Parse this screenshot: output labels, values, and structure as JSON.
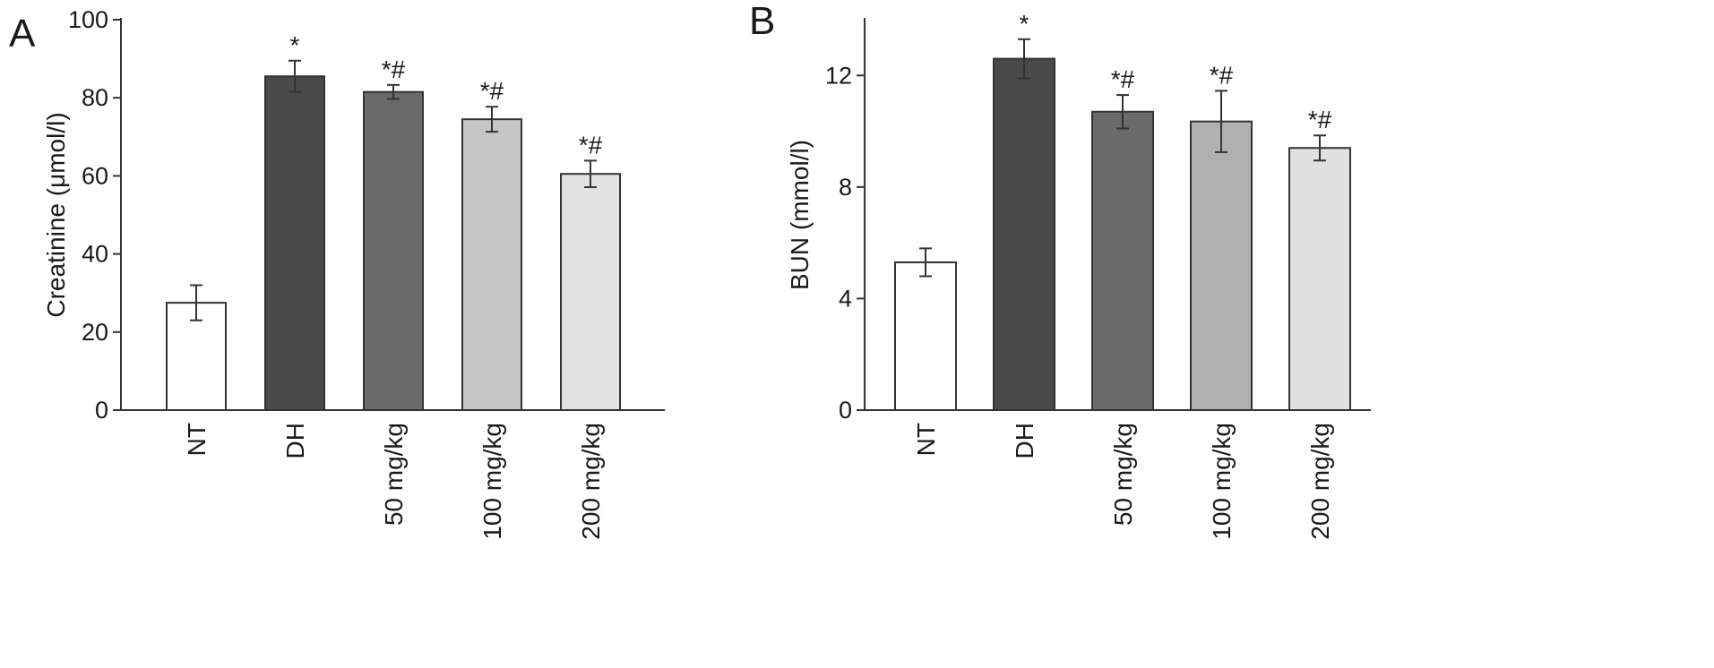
{
  "chart_data": [
    {
      "panel": "A",
      "type": "bar",
      "ylabel": "Creatinine (μmol/l)",
      "ylim": [
        0,
        100
      ],
      "yticks": [
        0,
        20,
        40,
        60,
        80,
        100
      ],
      "categories": [
        "NT",
        "DH",
        "50 mg/kg",
        "100 mg/kg",
        "200 mg/kg"
      ],
      "values": [
        27.5,
        85.5,
        81.5,
        74.5,
        60.5
      ],
      "errors": [
        4.5,
        4.0,
        1.8,
        3.2,
        3.4
      ],
      "annotations": [
        "",
        "*",
        "*#",
        "*#",
        "*#"
      ],
      "colors": [
        "#ffffff",
        "#4a4a4a",
        "#6a6a6a",
        "#c6c6c6",
        "#e2e2e2"
      ]
    },
    {
      "panel": "B",
      "type": "bar",
      "ylabel": "BUN (mmol/l)",
      "ylim": [
        0,
        14
      ],
      "yticks": [
        0,
        4,
        8,
        12
      ],
      "categories": [
        "NT",
        "DH",
        "50 mg/kg",
        "100 mg/kg",
        "200 mg/kg"
      ],
      "values": [
        5.3,
        12.6,
        10.7,
        10.35,
        9.4
      ],
      "errors": [
        0.5,
        0.7,
        0.6,
        1.1,
        0.45
      ],
      "annotations": [
        "",
        "*",
        "*#",
        "*#",
        "*#"
      ],
      "colors": [
        "#ffffff",
        "#4a4a4a",
        "#6a6a6a",
        "#b0b0b0",
        "#e0e0e0"
      ]
    }
  ]
}
